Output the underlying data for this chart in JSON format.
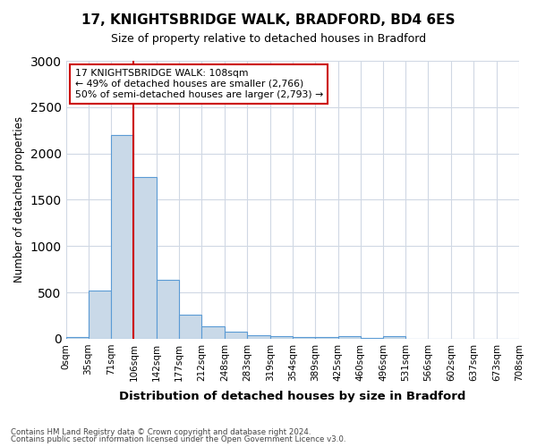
{
  "title": "17, KNIGHTSBRIDGE WALK, BRADFORD, BD4 6ES",
  "subtitle": "Size of property relative to detached houses in Bradford",
  "xlabel": "Distribution of detached houses by size in Bradford",
  "ylabel": "Number of detached properties",
  "bin_labels": [
    "0sqm",
    "35sqm",
    "71sqm",
    "106sqm",
    "142sqm",
    "177sqm",
    "212sqm",
    "248sqm",
    "283sqm",
    "319sqm",
    "354sqm",
    "389sqm",
    "425sqm",
    "460sqm",
    "496sqm",
    "531sqm",
    "566sqm",
    "602sqm",
    "637sqm",
    "673sqm",
    "708sqm"
  ],
  "bar_values": [
    20,
    520,
    2200,
    1750,
    640,
    260,
    135,
    75,
    35,
    30,
    20,
    15,
    30,
    10,
    25,
    0,
    0,
    0,
    0,
    0
  ],
  "bar_color": "#c9d9e8",
  "bar_edge_color": "#5b9bd5",
  "vline_x": 106,
  "vline_color": "#cc0000",
  "ylim": [
    0,
    3000
  ],
  "yticks": [
    0,
    500,
    1000,
    1500,
    2000,
    2500,
    3000
  ],
  "bin_edges": [
    0,
    35,
    71,
    106,
    142,
    177,
    212,
    248,
    283,
    319,
    354,
    389,
    425,
    460,
    496,
    531,
    566,
    602,
    637,
    673,
    708
  ],
  "annotation_title": "17 KNIGHTSBRIDGE WALK: 108sqm",
  "annotation_line1": "← 49% of detached houses are smaller (2,766)",
  "annotation_line2": "50% of semi-detached houses are larger (2,793) →",
  "annotation_box_color": "#ffffff",
  "annotation_box_edge": "#cc0000",
  "footnote1": "Contains HM Land Registry data © Crown copyright and database right 2024.",
  "footnote2": "Contains public sector information licensed under the Open Government Licence v3.0.",
  "background_color": "#ffffff",
  "grid_color": "#d0d8e4"
}
